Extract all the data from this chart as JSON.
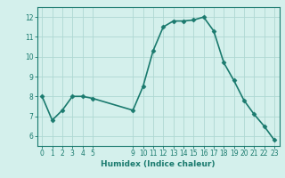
{
  "x": [
    0,
    1,
    2,
    3,
    4,
    5,
    9,
    10,
    11,
    12,
    13,
    14,
    15,
    16,
    17,
    18,
    19,
    20,
    21,
    22,
    23
  ],
  "y": [
    8.0,
    6.8,
    7.3,
    8.0,
    8.0,
    7.9,
    7.3,
    8.5,
    10.3,
    11.5,
    11.8,
    11.8,
    11.85,
    12.0,
    11.3,
    9.7,
    8.8,
    7.8,
    7.1,
    6.5,
    5.8
  ],
  "xticks": [
    0,
    1,
    2,
    3,
    4,
    5,
    9,
    10,
    11,
    12,
    13,
    14,
    15,
    16,
    17,
    18,
    19,
    20,
    21,
    22,
    23
  ],
  "yticks": [
    6,
    7,
    8,
    9,
    10,
    11,
    12
  ],
  "ylim": [
    5.5,
    12.5
  ],
  "xlim": [
    -0.5,
    23.5
  ],
  "xlabel": "Humidex (Indice chaleur)",
  "line_color": "#1a7a6e",
  "bg_color": "#d4f0ec",
  "grid_color": "#aed8d2",
  "marker": "D",
  "marker_size": 2.5,
  "linewidth": 1.2,
  "tick_fontsize": 5.5,
  "xlabel_fontsize": 6.5
}
